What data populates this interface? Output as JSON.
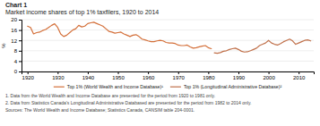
{
  "chart_data": {
    "type": "line",
    "title": "Chart 1",
    "subtitle": "Market income shares of top 1% taxfilers, 1920 to 2014",
    "ylabel": "%",
    "annotations": [
      "1.  Data from the World Wealth and Income Database are presented for the period from 1920 to 1981 only.",
      "2.  Data from Statistics Canada’s Longitudinal Administrative Databased are presented for the period from 1982 to 2014 only.",
      "Sources:  The World Wealth and Income Database; Statistics Canada, CANSIM table 204-0001."
    ],
    "xlim": [
      1918,
      2015
    ],
    "xticks": [
      1920,
      1930,
      1940,
      1950,
      1960,
      1970,
      1980,
      1990,
      2000,
      2010
    ],
    "ylim": [
      0,
      20
    ],
    "yticks": [
      0,
      4,
      8,
      12,
      16,
      20
    ],
    "grid": true,
    "legend": "bottom",
    "series": [
      {
        "name": "Top 1% (World Wealth and Income Database)¹",
        "color": "#d4703a",
        "x": [
          1920,
          1921,
          1922,
          1923,
          1924,
          1925,
          1926,
          1927,
          1928,
          1929,
          1930,
          1931,
          1932,
          1933,
          1934,
          1935,
          1936,
          1937,
          1938,
          1939,
          1940,
          1941,
          1942,
          1943,
          1944,
          1945,
          1946,
          1947,
          1948,
          1949,
          1950,
          1951,
          1952,
          1953,
          1954,
          1955,
          1956,
          1957,
          1958,
          1959,
          1960,
          1961,
          1962,
          1963,
          1964,
          1965,
          1966,
          1967,
          1968,
          1969,
          1970,
          1971,
          1972,
          1973,
          1974,
          1975,
          1976,
          1977,
          1978,
          1979,
          1980,
          1981
        ],
        "values": [
          17.5,
          17.0,
          14.5,
          15.0,
          15.2,
          15.8,
          16.2,
          17.0,
          17.8,
          18.4,
          17.0,
          14.5,
          13.5,
          14.0,
          15.0,
          16.0,
          16.5,
          17.8,
          17.2,
          17.5,
          18.5,
          18.8,
          19.0,
          18.5,
          18.0,
          17.5,
          16.5,
          15.5,
          15.2,
          14.8,
          15.0,
          15.2,
          14.5,
          14.0,
          13.5,
          14.0,
          14.2,
          13.5,
          12.5,
          12.2,
          11.8,
          11.5,
          11.5,
          11.8,
          12.0,
          11.8,
          11.2,
          11.0,
          11.0,
          10.8,
          10.2,
          10.0,
          10.0,
          10.2,
          9.5,
          9.0,
          9.2,
          9.5,
          9.8,
          10.0,
          9.2,
          8.8
        ]
      },
      {
        "name": "Top 1% (Longitudinal Administrative Database)²",
        "color": "#c0704a",
        "x": [
          1982,
          1983,
          1984,
          1985,
          1986,
          1987,
          1988,
          1989,
          1990,
          1991,
          1992,
          1993,
          1994,
          1995,
          1996,
          1997,
          1998,
          1999,
          2000,
          2001,
          2002,
          2003,
          2004,
          2005,
          2006,
          2007,
          2008,
          2009,
          2010,
          2011,
          2012,
          2013,
          2014
        ],
        "values": [
          7.2,
          7.0,
          7.3,
          7.8,
          8.0,
          8.5,
          8.8,
          9.0,
          8.5,
          7.8,
          7.5,
          7.6,
          8.0,
          8.5,
          9.0,
          10.0,
          10.5,
          11.0,
          12.0,
          11.0,
          10.5,
          10.2,
          10.8,
          11.5,
          12.0,
          12.5,
          11.8,
          10.5,
          11.0,
          11.5,
          12.0,
          12.2,
          11.8
        ]
      }
    ]
  }
}
